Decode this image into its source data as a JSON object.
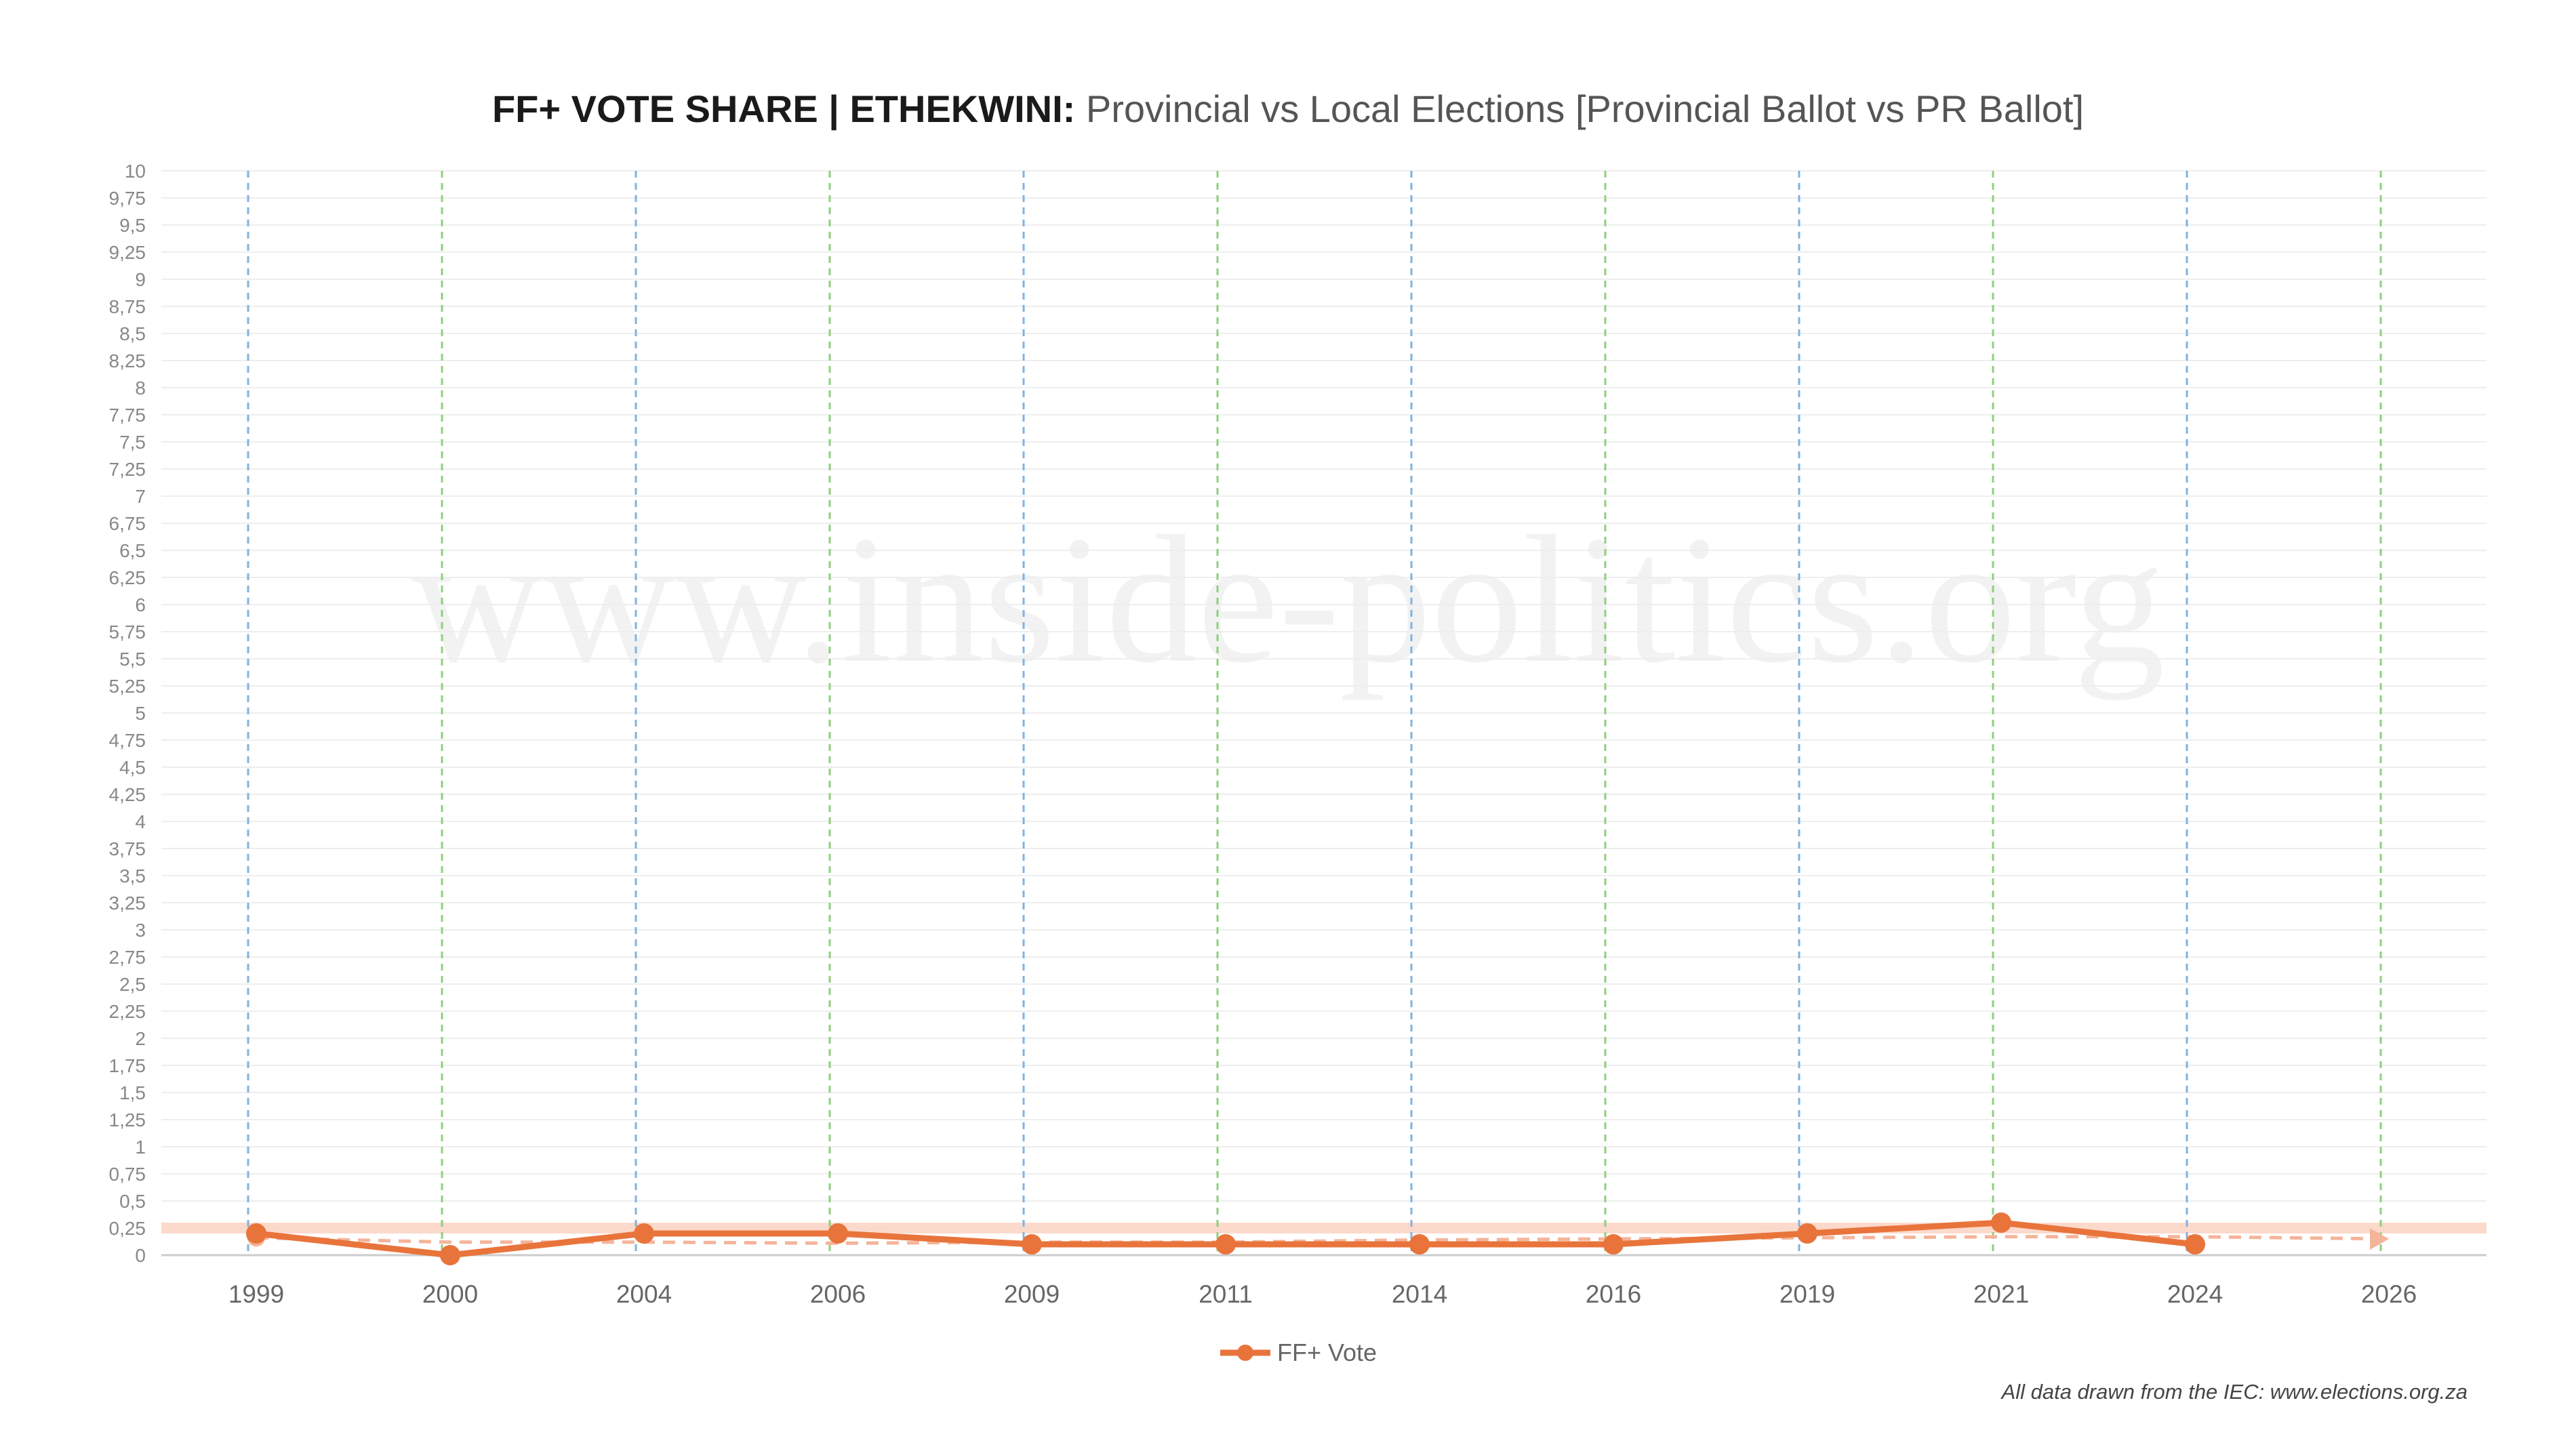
{
  "title": {
    "bold": "FF+ VOTE SHARE | ETHEKWINI:",
    "rest": "Provincial vs Local Elections [Provincial Ballot vs PR Ballot]"
  },
  "watermark": "www.inside-politics.org",
  "footnote": "All data drawn from the IEC: www.elections.org.za",
  "colors": {
    "series": "#e8743b",
    "trend": "#f4b49a",
    "provincial_line": "#7fb2e0",
    "local_line": "#8fcf7f",
    "band": "#fbd6c6",
    "grid": "#eeeeee",
    "tick_text": "#666666"
  },
  "chart_data": {
    "type": "line",
    "title": "FF+ VOTE SHARE | ETHEKWINI: Provincial vs Local Elections [Provincial Ballot vs PR Ballot]",
    "categories": [
      "1999",
      "2000",
      "2004",
      "2006",
      "2009",
      "2011",
      "2014",
      "2016",
      "2019",
      "2021",
      "2024",
      "2026"
    ],
    "y_ticks": [
      "0",
      "0,25",
      "0,5",
      "0,75",
      "1",
      "1,25",
      "1,5",
      "1,75",
      "2",
      "2,25",
      "2,5",
      "2,75",
      "3",
      "3,25",
      "3,5",
      "3,75",
      "4",
      "4,25",
      "4,5",
      "4,75",
      "5",
      "5,25",
      "5,5",
      "5,75",
      "6",
      "6,25",
      "6,5",
      "6,75",
      "7",
      "7,25",
      "7,5",
      "7,75",
      "8",
      "8,25",
      "8,5",
      "8,75",
      "9",
      "9,25",
      "9,5",
      "9,75",
      "10"
    ],
    "ylim": [
      0,
      10
    ],
    "series": [
      {
        "name": "FF+ Vote",
        "values": [
          0.2,
          0.0,
          0.2,
          0.2,
          0.1,
          0.1,
          0.1,
          0.1,
          0.2,
          0.3,
          0.1,
          null
        ]
      }
    ],
    "trendline": {
      "style": "dashed",
      "values": [
        0.16,
        0.12,
        0.12,
        0.11,
        0.12,
        0.12,
        0.14,
        0.15,
        0.16,
        0.17,
        0.17,
        0.15
      ]
    },
    "band": {
      "range": [
        0.2,
        0.3
      ]
    },
    "election_types": [
      "provincial",
      "local",
      "provincial",
      "local",
      "provincial",
      "local",
      "provincial",
      "local",
      "provincial",
      "local",
      "provincial",
      "local"
    ],
    "legend": {
      "position": "bottom-center",
      "entries": [
        "FF+ Vote"
      ]
    },
    "grid": true
  }
}
